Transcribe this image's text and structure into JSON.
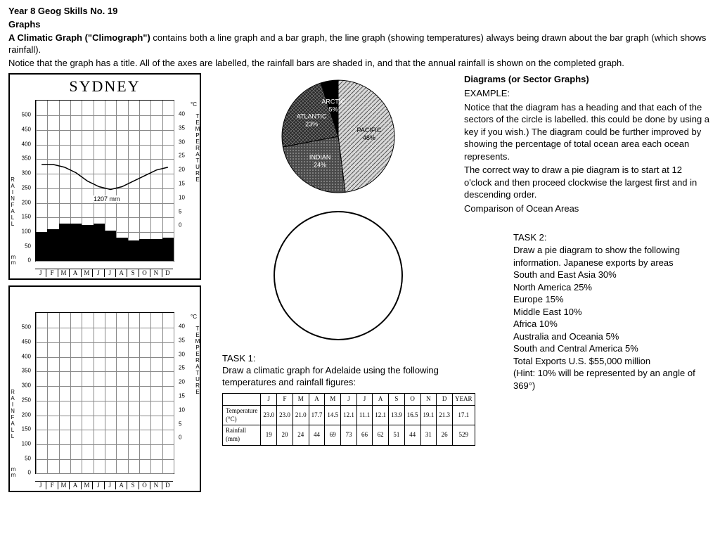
{
  "header": {
    "line1": "Year 8 Geog Skills No. 19",
    "line2": "Graphs",
    "line3a": "A Climatic Graph (\"Climograph\") ",
    "line3b": "contains both a line graph and a bar graph, the line graph (showing temperatures) always being drawn about the bar graph (which shows rainfall).",
    "line4": "Notice that the graph has a title. All of the axes are labelled, the rainfall bars are shaded in, and that the annual rainfall is shown on the completed graph."
  },
  "climograph": {
    "title": "SYDNEY",
    "months": [
      "J",
      "F",
      "M",
      "A",
      "M",
      "J",
      "J",
      "A",
      "S",
      "O",
      "N",
      "D"
    ],
    "rainfall_label_chars": [
      "R",
      "A",
      "I",
      "N",
      "F",
      "A",
      "L",
      "L"
    ],
    "mm_chars": [
      "m",
      "m"
    ],
    "temp_label_chars": [
      "T",
      "E",
      "M",
      "P",
      "E",
      "R",
      "A",
      "T",
      "U",
      "R",
      "E"
    ],
    "c_symbol": "°C",
    "rain_ticks": [
      0,
      50,
      100,
      150,
      200,
      250,
      300,
      350,
      400,
      450,
      500
    ],
    "rain_max": 550,
    "temp_ticks": [
      0,
      5,
      10,
      15,
      20,
      25,
      30,
      35,
      40
    ],
    "temp_max": 45,
    "annual_rainfall": "1207 mm",
    "rainfall_mm": [
      100,
      110,
      130,
      130,
      125,
      130,
      105,
      80,
      70,
      75,
      75,
      80
    ],
    "temperature_c": [
      22,
      22,
      21,
      19,
      16,
      14,
      13,
      14,
      16,
      18,
      20,
      21
    ],
    "bar_color": "#000000",
    "line_color": "#000000",
    "grid_color": "#999999",
    "border_color": "#000000"
  },
  "pie": {
    "radius": 80,
    "slices": [
      {
        "label": "PACIFIC",
        "pct": "48%",
        "value": 48,
        "fill": "diag"
      },
      {
        "label": "INDIAN",
        "pct": "24%",
        "value": 24,
        "fill": "dots-dark"
      },
      {
        "label": "ATLANTIC",
        "pct": "23%",
        "value": 23,
        "fill": "cross"
      },
      {
        "label": "ARCTIC",
        "pct": "5%",
        "value": 5,
        "fill": "solid"
      }
    ],
    "colors": {
      "diag": "#c0c0c0",
      "dots-dark": "#505050",
      "cross": "#303030",
      "solid": "#000000"
    }
  },
  "right": {
    "heading": "Diagrams (or Sector Graphs)",
    "example_label": "EXAMPLE:",
    "p1": "Notice that the diagram has a heading and that each of the sectors of the circle is labelled. this could be done by using a key if you wish.) The diagram could be further improved by showing the percentage of total ocean area each ocean represents.",
    "p2": "The correct way to draw a pie diagram is to start at 12 o'clock and then proceed clockwise the largest first and in descending order.",
    "p3": " Comparison of Ocean Areas"
  },
  "task1": {
    "label": "TASK 1:",
    "text": "Draw a climatic graph for Adelaide using the following temperatures and rainfall figures:",
    "col_heads": [
      "J",
      "F",
      "M",
      "A",
      "M",
      "J",
      "J",
      "A",
      "S",
      "O",
      "N",
      "D",
      "YEAR"
    ],
    "row1_label": "Temperature (°C)",
    "row1": [
      "23.0",
      "23.0",
      "21.0",
      "17.7",
      "14.5",
      "12.1",
      "11.1",
      "12.1",
      "13.9",
      "16.5",
      "19.1",
      "21.3",
      "17.1"
    ],
    "row2_label": "Rainfall (mm)",
    "row2": [
      "19",
      "20",
      "24",
      "44",
      "69",
      "73",
      "66",
      "62",
      "51",
      "44",
      "31",
      "26",
      "529"
    ]
  },
  "task2": {
    "label": "TASK 2:",
    "lines": [
      "Draw a pie diagram to show the following information. Japanese exports by areas",
      "South and East Asia 30%",
      "North America 25%",
      "Europe 15%",
      "Middle East 10%",
      "Africa 10%",
      "Australia and Oceania 5%",
      "South and Central America 5%",
      "Total Exports U.S. $55,000 million",
      "(Hint: 10% will be represented by an angle of 369°)"
    ]
  }
}
